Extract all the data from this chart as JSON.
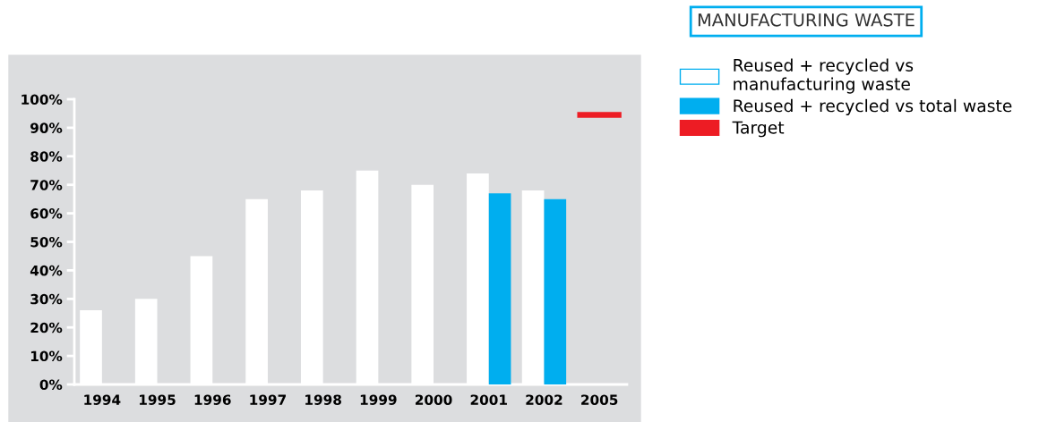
{
  "chart_data": {
    "type": "bar",
    "legend_title": "MANUFACTURING WASTE",
    "categories": [
      "1994",
      "1995",
      "1996",
      "1997",
      "1998",
      "1999",
      "2000",
      "2001",
      "2002",
      "2005"
    ],
    "series": [
      {
        "name": "Reused + recycled vs manufacturing waste",
        "color": "#ffffff",
        "values": [
          26,
          30,
          45,
          65,
          68,
          75,
          70,
          74,
          68,
          null
        ]
      },
      {
        "name": "Reused + recycled vs total waste",
        "color": "#00aeef",
        "values": [
          null,
          null,
          null,
          null,
          null,
          null,
          null,
          67,
          65,
          null
        ]
      },
      {
        "name": "Target",
        "color": "#ed1c24",
        "base": [
          null,
          null,
          null,
          null,
          null,
          null,
          null,
          null,
          null,
          93.5
        ],
        "values": [
          null,
          null,
          null,
          null,
          null,
          null,
          null,
          null,
          null,
          2
        ]
      }
    ],
    "ylim": [
      0,
      100
    ],
    "yticks": [
      {
        "value": 0,
        "label": "0%"
      },
      {
        "value": 10,
        "label": "10%"
      },
      {
        "value": 20,
        "label": "20%"
      },
      {
        "value": 30,
        "label": "30%"
      },
      {
        "value": 40,
        "label": "40%"
      },
      {
        "value": 50,
        "label": "50%"
      },
      {
        "value": 60,
        "label": "60%"
      },
      {
        "value": 70,
        "label": "70%"
      },
      {
        "value": 80,
        "label": "80%"
      },
      {
        "value": 90,
        "label": "90%"
      },
      {
        "value": 100,
        "label": "100%"
      }
    ],
    "grid": false,
    "legend": "top right"
  }
}
